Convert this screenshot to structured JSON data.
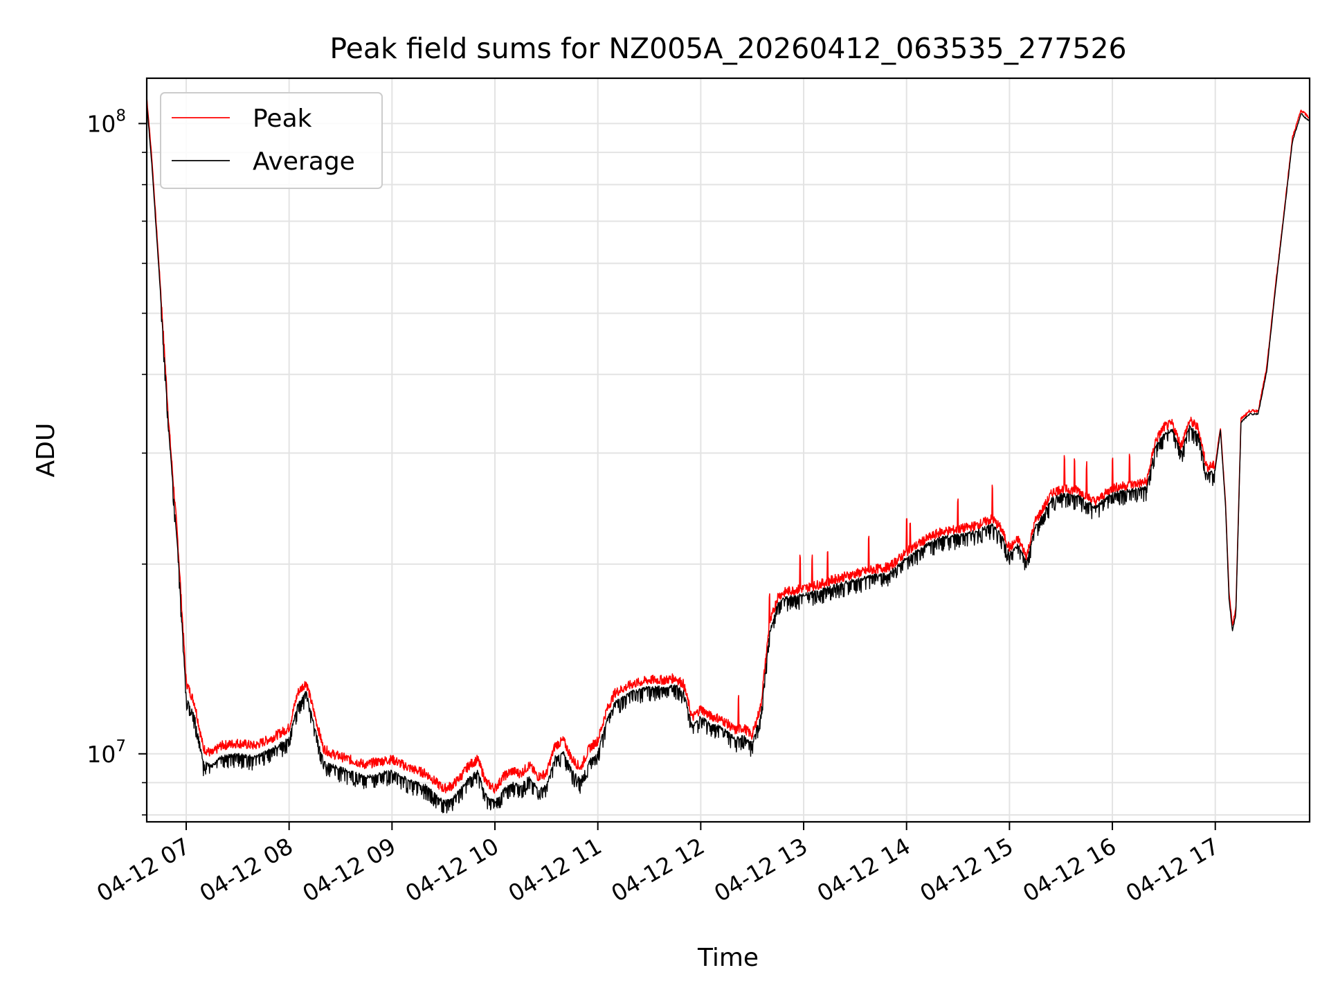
{
  "chart_data": {
    "type": "line",
    "title": "Peak field sums for NZ005A_20260412_063535_277526",
    "xlabel": "Time",
    "ylabel": "ADU",
    "yscale": "log",
    "ylim": [
      7800000,
      118000000
    ],
    "xlim": [
      "2026-04-12 06:37",
      "2026-04-12 17:55"
    ],
    "grid": true,
    "legend_position": "top-left",
    "x_ticks": [
      "04-12 07",
      "04-12 08",
      "04-12 09",
      "04-12 10",
      "04-12 11",
      "04-12 12",
      "04-12 13",
      "04-12 14",
      "04-12 15",
      "04-12 16",
      "04-12 17"
    ],
    "y_ticks": [
      {
        "value": 10000000,
        "base": "10",
        "exp": "7"
      },
      {
        "value": 100000000,
        "base": "10",
        "exp": "8"
      }
    ],
    "x": [
      "06:37",
      "06:40",
      "06:45",
      "06:50",
      "06:55",
      "07:00",
      "07:05",
      "07:10",
      "07:15",
      "07:20",
      "07:30",
      "07:40",
      "07:50",
      "08:00",
      "08:05",
      "08:10",
      "08:15",
      "08:20",
      "08:25",
      "08:30",
      "08:35",
      "08:40",
      "08:45",
      "08:50",
      "09:00",
      "09:10",
      "09:20",
      "09:30",
      "09:35",
      "09:40",
      "09:45",
      "09:50",
      "09:55",
      "10:00",
      "10:05",
      "10:10",
      "10:15",
      "10:20",
      "10:25",
      "10:30",
      "10:35",
      "10:40",
      "10:45",
      "10:50",
      "10:55",
      "11:00",
      "11:05",
      "11:10",
      "11:20",
      "11:30",
      "11:40",
      "11:45",
      "11:50",
      "11:55",
      "12:00",
      "12:05",
      "12:10",
      "12:15",
      "12:20",
      "12:25",
      "12:30",
      "12:35",
      "12:40",
      "12:45",
      "12:50",
      "13:00",
      "13:10",
      "13:20",
      "13:30",
      "13:40",
      "13:50",
      "14:00",
      "14:10",
      "14:20",
      "14:30",
      "14:40",
      "14:50",
      "14:55",
      "15:00",
      "15:05",
      "15:10",
      "15:15",
      "15:20",
      "15:25",
      "15:30",
      "15:40",
      "15:50",
      "16:00",
      "16:10",
      "16:20",
      "16:25",
      "16:30",
      "16:35",
      "16:40",
      "16:45",
      "16:50",
      "16:55",
      "17:00",
      "17:03",
      "17:06",
      "17:08",
      "17:10",
      "17:12",
      "17:15",
      "17:20",
      "17:25",
      "17:30",
      "17:35",
      "17:40",
      "17:45",
      "17:50",
      "17:55"
    ],
    "series": [
      {
        "name": "Peak",
        "color": "#ff0000",
        "values": [
          110000000,
          88000000,
          55000000,
          33000000,
          22000000,
          13000000,
          12000000,
          10200000,
          10000000,
          10300000,
          10400000,
          10300000,
          10600000,
          11000000,
          12500000,
          13000000,
          11500000,
          10200000,
          10000000,
          9900000,
          9800000,
          9700000,
          9600000,
          9700000,
          9800000,
          9500000,
          9300000,
          8800000,
          8900000,
          9200000,
          9600000,
          9800000,
          9000000,
          8800000,
          9200000,
          9400000,
          9300000,
          9600000,
          9200000,
          9300000,
          10300000,
          10500000,
          9800000,
          9500000,
          10200000,
          10500000,
          11700000,
          12500000,
          12900000,
          13100000,
          13100000,
          13200000,
          12900000,
          11400000,
          11800000,
          11500000,
          11400000,
          11200000,
          10900000,
          11000000,
          10700000,
          11900000,
          16000000,
          17800000,
          18100000,
          18300000,
          18600000,
          19000000,
          19300000,
          19600000,
          19800000,
          20900000,
          21800000,
          22500000,
          22700000,
          23000000,
          23600000,
          22800000,
          21200000,
          21900000,
          20600000,
          23400000,
          24600000,
          26000000,
          26300000,
          26200000,
          25100000,
          26400000,
          26700000,
          27000000,
          31300000,
          33000000,
          33400000,
          30800000,
          33800000,
          32900000,
          28500000,
          28700000,
          33000000,
          25000000,
          18000000,
          16000000,
          17000000,
          34000000,
          35000000,
          35000000,
          41000000,
          55000000,
          72000000,
          95000000,
          105000000,
          102000000
        ]
      },
      {
        "name": "Average",
        "color": "#000000",
        "values": [
          108000000,
          86000000,
          54000000,
          32500000,
          21500000,
          12500000,
          11600000,
          9800000,
          9700000,
          10000000,
          10100000,
          10000000,
          10300000,
          10700000,
          12100000,
          12700000,
          11100000,
          9900000,
          9700000,
          9600000,
          9500000,
          9400000,
          9300000,
          9400000,
          9500000,
          9200000,
          9000000,
          8500000,
          8600000,
          8900000,
          9300000,
          9500000,
          8700000,
          8500000,
          8900000,
          9100000,
          9000000,
          9300000,
          8900000,
          9000000,
          10000000,
          10200000,
          9500000,
          9200000,
          9900000,
          10200000,
          11400000,
          12200000,
          12700000,
          12900000,
          12900000,
          13000000,
          12700000,
          11200000,
          11600000,
          11300000,
          11200000,
          11000000,
          10700000,
          10800000,
          10500000,
          11700000,
          15700000,
          17600000,
          17900000,
          18100000,
          18400000,
          18800000,
          19100000,
          19400000,
          19600000,
          20700000,
          21600000,
          22300000,
          22500000,
          22800000,
          23400000,
          22600000,
          21000000,
          21700000,
          20400000,
          23200000,
          24400000,
          25800000,
          26100000,
          26000000,
          24900000,
          26200000,
          26500000,
          26800000,
          31000000,
          32700000,
          33100000,
          30500000,
          33500000,
          32600000,
          28200000,
          28400000,
          32700000,
          24700000,
          17700000,
          15700000,
          16700000,
          33700000,
          34700000,
          34700000,
          40600000,
          54500000,
          71500000,
          94000000,
          104000000,
          101000000
        ]
      }
    ]
  }
}
